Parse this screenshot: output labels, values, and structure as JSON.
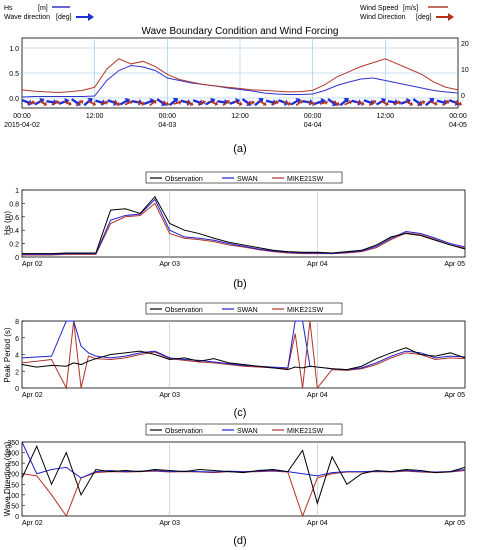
{
  "panels": {
    "a": {
      "label": "(a)",
      "title": "Wave Boundary Condition and Wind Forcing",
      "legend": {
        "hs": "Hs",
        "hs_unit": "[m]",
        "wave_dir": "Wave direction",
        "wave_dir_unit": "[deg]",
        "wind_speed": "Wind Speed",
        "wind_speed_unit": "[m/s]",
        "wind_dir": "Wind Direction",
        "wind_dir_unit": "[deg]"
      },
      "x_tick_labels": [
        "00:00",
        "12:00",
        "00:00",
        "12:00",
        "00:00",
        "12:00",
        "00:00"
      ],
      "x_date_labels": [
        "2015-04-02",
        "04-03",
        "04-04",
        "04-05"
      ],
      "left_ticks": [
        "1.0",
        "0.5",
        "0.0"
      ],
      "right_ticks": [
        "20",
        "10",
        "0"
      ]
    },
    "b": {
      "label": "(b)",
      "ylabel": "Hs (m)",
      "y_ticks": [
        "1",
        "0.8",
        "0.6",
        "0.4",
        "0.2",
        "0"
      ]
    },
    "c": {
      "label": "(c)",
      "ylabel": "Peak Period (s)",
      "y_ticks": [
        "8",
        "6",
        "4",
        "2",
        "0"
      ]
    },
    "d": {
      "label": "(d)",
      "ylabel": "Wave Direction (deg)",
      "y_ticks": [
        "350",
        "300",
        "250",
        "200",
        "150",
        "100",
        "50",
        "0"
      ]
    },
    "x_dates": [
      "Apr 02",
      "Apr 03",
      "Apr 04",
      "Apr 05"
    ]
  },
  "legend_entries": [
    "Observation",
    "SWAN",
    "MIKE21SW"
  ],
  "colors": {
    "observation": "#000000",
    "swan": "#2222cc",
    "mike": "#b0312b",
    "hs_a": "#3333cc",
    "wind_a": "#b03a2e",
    "arrow_blue": "#1f2fd6",
    "arrow_red": "#b5321e"
  },
  "chart_data": [
    {
      "type": "line",
      "title": "Wave Boundary Condition and Wind Forcing",
      "x_unit": "hours from 2015-04-02 00:00",
      "xlim": [
        0,
        72
      ],
      "ylim_left": [
        -0.2,
        1.2
      ],
      "ylim_right": [
        -5,
        22
      ],
      "series": [
        {
          "name": "Hs",
          "unit": "[m]",
          "axis": "left",
          "x": [
            0,
            2,
            4,
            6,
            8,
            10,
            12,
            14,
            16,
            18,
            20,
            22,
            24,
            26,
            28,
            30,
            32,
            34,
            36,
            38,
            40,
            42,
            44,
            46,
            48,
            50,
            52,
            54,
            56,
            58,
            60,
            62,
            64,
            66,
            68,
            70,
            72
          ],
          "values": [
            0.02,
            0.03,
            0.03,
            0.03,
            0.03,
            0.03,
            0.04,
            0.35,
            0.55,
            0.65,
            0.62,
            0.55,
            0.4,
            0.35,
            0.3,
            0.27,
            0.24,
            0.2,
            0.17,
            0.14,
            0.1,
            0.08,
            0.07,
            0.07,
            0.08,
            0.15,
            0.25,
            0.32,
            0.38,
            0.4,
            0.35,
            0.3,
            0.25,
            0.2,
            0.15,
            0.12,
            0.1
          ]
        },
        {
          "name": "Wind Speed",
          "unit": "[m/s]",
          "axis": "right",
          "x": [
            0,
            2,
            4,
            6,
            8,
            10,
            12,
            14,
            16,
            18,
            20,
            22,
            24,
            26,
            28,
            30,
            32,
            34,
            36,
            38,
            40,
            42,
            44,
            46,
            48,
            50,
            52,
            54,
            56,
            58,
            60,
            62,
            64,
            66,
            68,
            70,
            72
          ],
          "values": [
            2,
            1.5,
            1.2,
            1,
            1.3,
            1.8,
            3,
            10,
            14,
            12,
            13,
            11,
            8,
            6,
            5,
            4,
            3.5,
            3,
            2.5,
            2,
            1.8,
            1.5,
            1.2,
            1.3,
            1.8,
            4,
            7,
            9,
            11,
            12.5,
            14,
            12,
            10,
            8,
            5,
            3,
            2
          ]
        }
      ]
    },
    {
      "type": "line",
      "ylabel": "Hs (m)",
      "x_unit": "days from Apr 02",
      "xlim": [
        0,
        3
      ],
      "ylim": [
        0,
        1
      ],
      "x": [
        0,
        0.1,
        0.2,
        0.3,
        0.4,
        0.5,
        0.6,
        0.7,
        0.8,
        0.9,
        1.0,
        1.1,
        1.2,
        1.3,
        1.4,
        1.5,
        1.6,
        1.7,
        1.8,
        1.9,
        2.0,
        2.1,
        2.2,
        2.3,
        2.4,
        2.5,
        2.6,
        2.7,
        2.8,
        2.9,
        3.0
      ],
      "series": [
        {
          "name": "Observation",
          "values": [
            0.05,
            0.05,
            0.05,
            0.06,
            0.06,
            0.06,
            0.7,
            0.72,
            0.65,
            0.9,
            0.5,
            0.4,
            0.35,
            0.28,
            0.22,
            0.18,
            0.14,
            0.1,
            0.08,
            0.07,
            0.07,
            0.06,
            0.08,
            0.1,
            0.18,
            0.3,
            0.35,
            0.32,
            0.25,
            0.18,
            0.12
          ]
        },
        {
          "name": "SWAN",
          "values": [
            0.04,
            0.04,
            0.04,
            0.05,
            0.05,
            0.05,
            0.55,
            0.62,
            0.64,
            0.86,
            0.4,
            0.3,
            0.28,
            0.25,
            0.2,
            0.16,
            0.12,
            0.09,
            0.07,
            0.06,
            0.06,
            0.05,
            0.07,
            0.09,
            0.16,
            0.28,
            0.38,
            0.35,
            0.28,
            0.2,
            0.15
          ]
        },
        {
          "name": "MIKE21SW",
          "values": [
            0.03,
            0.03,
            0.03,
            0.04,
            0.04,
            0.04,
            0.5,
            0.6,
            0.62,
            0.8,
            0.35,
            0.28,
            0.26,
            0.23,
            0.18,
            0.15,
            0.11,
            0.08,
            0.06,
            0.05,
            0.05,
            0.05,
            0.06,
            0.08,
            0.14,
            0.26,
            0.36,
            0.33,
            0.26,
            0.18,
            0.13
          ]
        }
      ]
    },
    {
      "type": "line",
      "ylabel": "Peak Period (s)",
      "x_unit": "days from Apr 02",
      "xlim": [
        0,
        3
      ],
      "ylim": [
        0,
        8
      ],
      "x": [
        0,
        0.1,
        0.2,
        0.3,
        0.35,
        0.4,
        0.45,
        0.5,
        0.6,
        0.7,
        0.8,
        0.9,
        1.0,
        1.1,
        1.2,
        1.3,
        1.4,
        1.5,
        1.6,
        1.7,
        1.8,
        1.85,
        1.9,
        1.95,
        2.0,
        2.1,
        2.2,
        2.3,
        2.4,
        2.5,
        2.6,
        2.7,
        2.8,
        2.9,
        3.0
      ],
      "series": [
        {
          "name": "Observation",
          "values": [
            2.8,
            2.5,
            2.7,
            2.6,
            3.0,
            2.8,
            3.2,
            3.5,
            4.0,
            4.2,
            4.4,
            4.0,
            3.4,
            3.6,
            3.2,
            3.5,
            3.0,
            2.8,
            2.6,
            2.4,
            2.2,
            2.5,
            2.4,
            2.6,
            2.5,
            2.3,
            2.2,
            2.6,
            3.5,
            4.2,
            4.8,
            4.0,
            3.8,
            4.2,
            3.6
          ]
        },
        {
          "name": "SWAN",
          "values": [
            3.6,
            3.7,
            3.8,
            8,
            8,
            5.0,
            4.2,
            3.8,
            3.6,
            3.8,
            4.2,
            4.4,
            3.6,
            3.4,
            3.3,
            3.1,
            2.9,
            2.7,
            2.6,
            2.5,
            2.4,
            8,
            8,
            2.6,
            2.5,
            2.3,
            2.2,
            2.4,
            3.0,
            3.8,
            4.4,
            4.2,
            3.6,
            3.8,
            3.7
          ]
        },
        {
          "name": "MIKE21SW",
          "values": [
            3.0,
            3.2,
            3.4,
            0,
            8,
            0,
            3.8,
            3.5,
            3.4,
            3.6,
            4.0,
            4.3,
            3.5,
            3.3,
            3.1,
            3.0,
            2.8,
            2.6,
            2.5,
            2.4,
            2.3,
            6.5,
            0,
            8,
            0,
            2.2,
            2.1,
            2.3,
            2.8,
            3.6,
            4.2,
            4.0,
            3.4,
            3.6,
            3.5
          ]
        }
      ]
    },
    {
      "type": "line",
      "ylabel": "Wave Direction (deg)",
      "x_unit": "days from Apr 02",
      "xlim": [
        0,
        3
      ],
      "ylim": [
        0,
        350
      ],
      "x": [
        0,
        0.1,
        0.2,
        0.3,
        0.4,
        0.5,
        0.6,
        0.7,
        0.8,
        0.9,
        1.0,
        1.1,
        1.2,
        1.3,
        1.4,
        1.5,
        1.6,
        1.7,
        1.8,
        1.9,
        2.0,
        2.1,
        2.2,
        2.3,
        2.4,
        2.5,
        2.6,
        2.7,
        2.8,
        2.9,
        3.0
      ],
      "series": [
        {
          "name": "Observation",
          "values": [
            180,
            330,
            150,
            300,
            100,
            220,
            210,
            215,
            210,
            220,
            215,
            210,
            220,
            215,
            210,
            205,
            215,
            220,
            210,
            310,
            60,
            280,
            150,
            200,
            215,
            210,
            220,
            215,
            205,
            210,
            230
          ]
        },
        {
          "name": "SWAN",
          "values": [
            350,
            200,
            220,
            230,
            180,
            210,
            215,
            210,
            212,
            215,
            210,
            212,
            210,
            208,
            212,
            210,
            212,
            215,
            210,
            200,
            190,
            205,
            210,
            210,
            212,
            210,
            215,
            210,
            208,
            210,
            220
          ]
        },
        {
          "name": "MIKE21SW",
          "values": [
            200,
            190,
            100,
            0,
            180,
            205,
            210,
            208,
            210,
            212,
            208,
            210,
            208,
            205,
            210,
            208,
            210,
            212,
            208,
            0,
            180,
            200,
            208,
            208,
            210,
            208,
            212,
            208,
            205,
            208,
            215
          ]
        }
      ]
    }
  ]
}
